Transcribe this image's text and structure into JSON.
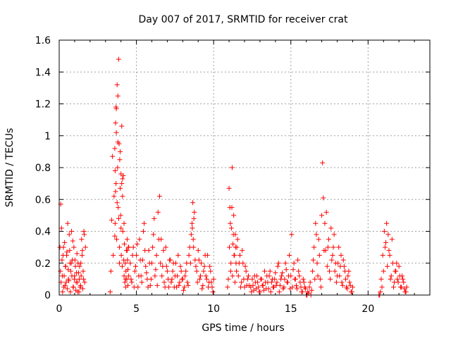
{
  "chart_data": {
    "type": "scatter",
    "title": "Day 007 of 2017, SRMTID for receiver crat",
    "xlabel": "GPS time / hours",
    "ylabel": "SRMTID / TECUs",
    "xlim": [
      0,
      24
    ],
    "ylim": [
      0,
      1.6
    ],
    "xticks": [
      0,
      5,
      10,
      15,
      20
    ],
    "yticks": [
      0,
      0.2,
      0.4,
      0.6,
      0.8,
      1,
      1.2,
      1.4,
      1.6
    ],
    "xtick_labels": [
      "0",
      "5",
      "10",
      "15",
      "20"
    ],
    "ytick_labels": [
      "0",
      "0.2",
      "0.4",
      "0.6",
      "0.8",
      "1",
      "1.2",
      "1.4",
      "1.6"
    ],
    "grid": true,
    "marker": "+",
    "color": "#ff0000",
    "series": [
      {
        "name": "SRMTID",
        "x": [
          0.05,
          0.1,
          0.15,
          0.2,
          0.25,
          0.3,
          0.35,
          0.4,
          0.45,
          0.5,
          0.55,
          0.6,
          0.65,
          0.7,
          0.75,
          0.8,
          0.85,
          0.9,
          0.95,
          1.0,
          1.05,
          1.1,
          1.15,
          1.2,
          1.25,
          1.3,
          1.35,
          1.4,
          1.45,
          1.5,
          1.55,
          1.6,
          1.65,
          1.7,
          0.08,
          0.12,
          0.18,
          0.22,
          0.28,
          0.32,
          0.38,
          0.42,
          0.48,
          0.52,
          0.58,
          0.62,
          0.68,
          0.72,
          0.78,
          0.82,
          0.88,
          0.92,
          0.98,
          1.02,
          1.08,
          1.12,
          1.18,
          1.22,
          1.28,
          1.32,
          1.38,
          1.42,
          1.48,
          1.52,
          1.58,
          1.62,
          3.3,
          3.35,
          3.4,
          3.45,
          3.5,
          3.55,
          3.6,
          3.62,
          3.65,
          3.68,
          3.7,
          3.72,
          3.75,
          3.78,
          3.8,
          3.82,
          3.85,
          3.88,
          3.9,
          3.92,
          3.95,
          3.98,
          4.0,
          4.02,
          4.05,
          4.08,
          4.1,
          4.12,
          4.15,
          4.18,
          4.2,
          4.22,
          4.25,
          4.28,
          4.3,
          4.32,
          4.35,
          4.38,
          4.4,
          4.42,
          4.45,
          4.48,
          4.5,
          3.6,
          3.62,
          3.65,
          3.68,
          3.7,
          3.75,
          3.8,
          3.85,
          3.9,
          3.95,
          4.0,
          4.05,
          4.1,
          4.2,
          4.3,
          4.4,
          4.45,
          4.5,
          4.6,
          4.7,
          4.8,
          4.9,
          5.0,
          5.1,
          5.2,
          5.3,
          5.4,
          5.5,
          5.6,
          5.7,
          5.8,
          5.9,
          6.0,
          6.1,
          6.2,
          6.3,
          6.4,
          6.5,
          6.6,
          6.7,
          6.8,
          6.9,
          7.0,
          7.1,
          7.2,
          7.3,
          7.4,
          7.5,
          7.6,
          7.7,
          7.8,
          7.9,
          4.65,
          4.75,
          4.85,
          4.95,
          5.05,
          5.15,
          5.25,
          5.35,
          5.45,
          5.55,
          5.65,
          5.75,
          5.85,
          5.95,
          6.05,
          6.15,
          6.25,
          6.35,
          6.45,
          6.55,
          6.65,
          6.75,
          6.85,
          6.95,
          7.05,
          7.15,
          7.25,
          7.35,
          7.45,
          7.55,
          7.65,
          7.75,
          7.85,
          7.95,
          8.0,
          8.1,
          8.2,
          8.3,
          8.4,
          8.5,
          8.55,
          8.6,
          8.65,
          8.7,
          8.75,
          8.8,
          8.9,
          9.0,
          9.1,
          9.2,
          9.3,
          9.4,
          9.5,
          9.6,
          9.7,
          9.8,
          9.9,
          10.0,
          8.05,
          8.15,
          8.25,
          8.35,
          8.45,
          8.62,
          8.68,
          8.72,
          8.85,
          8.95,
          9.05,
          9.15,
          9.25,
          9.35,
          9.45,
          9.55,
          9.65,
          9.75,
          9.85,
          9.95,
          10.9,
          11.0,
          11.05,
          11.1,
          11.15,
          11.2,
          11.25,
          11.3,
          11.35,
          11.4,
          11.45,
          11.5,
          11.6,
          11.7,
          11.8,
          11.9,
          12.0,
          12.1,
          12.2,
          12.3,
          10.95,
          11.02,
          11.08,
          11.12,
          11.18,
          11.22,
          11.28,
          11.32,
          11.38,
          11.42,
          11.48,
          11.55,
          11.65,
          11.75,
          11.85,
          11.95,
          12.05,
          12.15,
          12.25,
          12.4,
          12.5,
          12.6,
          12.7,
          12.8,
          12.9,
          13.0,
          13.1,
          13.2,
          13.3,
          13.4,
          13.5,
          13.6,
          13.7,
          13.8,
          13.9,
          14.0,
          14.1,
          14.2,
          14.3,
          14.4,
          14.5,
          14.6,
          14.7,
          14.8,
          14.9,
          15.0,
          15.1,
          15.2,
          15.3,
          15.4,
          15.5,
          15.6,
          15.7,
          15.8,
          15.9,
          12.45,
          12.55,
          12.65,
          12.75,
          12.85,
          12.95,
          13.05,
          13.15,
          13.25,
          13.35,
          13.45,
          13.55,
          13.65,
          13.75,
          13.85,
          13.95,
          14.05,
          14.15,
          14.25,
          14.35,
          14.45,
          14.55,
          14.65,
          14.75,
          14.85,
          14.95,
          15.05,
          15.15,
          15.25,
          15.35,
          15.45,
          15.55,
          15.65,
          15.75,
          15.85,
          15.95,
          16.0,
          16.1,
          16.2,
          16.3,
          16.4,
          16.5,
          16.6,
          16.7,
          16.8,
          16.9,
          17.0,
          17.05,
          17.1,
          17.15,
          17.2,
          17.3,
          17.4,
          17.5,
          17.6,
          17.7,
          17.8,
          17.9,
          18.0,
          18.1,
          18.2,
          18.3,
          18.4,
          18.5,
          18.6,
          18.7,
          18.8,
          18.9,
          19.0,
          16.05,
          16.15,
          16.25,
          16.35,
          16.45,
          16.55,
          16.65,
          16.75,
          16.85,
          16.95,
          17.25,
          17.35,
          17.45,
          17.55,
          17.65,
          17.75,
          17.85,
          17.95,
          18.05,
          18.15,
          18.25,
          18.35,
          18.45,
          18.55,
          18.65,
          18.75,
          18.85,
          18.95,
          20.7,
          20.8,
          20.9,
          21.0,
          21.1,
          21.2,
          21.3,
          21.4,
          21.5,
          21.6,
          21.7,
          21.8,
          21.9,
          22.0,
          22.1,
          22.2,
          22.3,
          22.4,
          22.5,
          20.75,
          20.85,
          20.95,
          21.05,
          21.15,
          21.25,
          21.35,
          21.45,
          21.55,
          21.65,
          21.75,
          21.85,
          21.95,
          22.05,
          22.15,
          22.25,
          22.35,
          22.45
        ],
        "y": [
          0.3,
          0.57,
          0.42,
          0.12,
          0.25,
          0.05,
          0.33,
          0.18,
          0.08,
          0.27,
          0.45,
          0.1,
          0.38,
          0.2,
          0.15,
          0.4,
          0.22,
          0.05,
          0.3,
          0.12,
          0.18,
          0.08,
          0.26,
          0.02,
          0.14,
          0.1,
          0.05,
          0.2,
          0.35,
          0.28,
          0.15,
          0.4,
          0.08,
          0.3,
          0.15,
          0.08,
          0.22,
          0.02,
          0.3,
          0.12,
          0.06,
          0.18,
          0.25,
          0.04,
          0.16,
          0.09,
          0.28,
          0.02,
          0.2,
          0.12,
          0.34,
          0.05,
          0.1,
          0.22,
          0.03,
          0.14,
          0.08,
          0.2,
          0.02,
          0.18,
          0.06,
          0.12,
          0.25,
          0.04,
          0.1,
          0.38,
          0.02,
          0.15,
          0.47,
          0.87,
          0.25,
          0.62,
          0.92,
          0.45,
          1.08,
          0.7,
          1.17,
          0.35,
          1.32,
          0.8,
          1.25,
          0.55,
          1.48,
          0.95,
          0.3,
          0.85,
          0.67,
          0.5,
          0.76,
          0.25,
          0.7,
          0.18,
          0.73,
          0.4,
          0.75,
          0.22,
          0.12,
          0.32,
          0.08,
          0.2,
          0.05,
          0.15,
          0.28,
          0.1,
          0.35,
          0.22,
          0.06,
          0.3,
          0.12,
          0.37,
          0.78,
          0.65,
          1.18,
          1.02,
          0.58,
          0.96,
          0.48,
          0.2,
          0.9,
          0.42,
          1.06,
          0.62,
          0.45,
          0.1,
          0.28,
          0.16,
          0.3,
          0.2,
          0.08,
          0.3,
          0.15,
          0.25,
          0.05,
          0.35,
          0.12,
          0.22,
          0.45,
          0.18,
          0.1,
          0.28,
          0.06,
          0.2,
          0.38,
          0.12,
          0.25,
          0.52,
          0.62,
          0.35,
          0.18,
          0.08,
          0.3,
          0.15,
          0.05,
          0.22,
          0.1,
          0.2,
          0.12,
          0.05,
          0.25,
          0.08,
          0.15,
          0.1,
          0.25,
          0.05,
          0.18,
          0.32,
          0.12,
          0.22,
          0.08,
          0.4,
          0.28,
          0.14,
          0.05,
          0.2,
          0.1,
          0.3,
          0.48,
          0.16,
          0.06,
          0.35,
          0.2,
          0.12,
          0.28,
          0.05,
          0.18,
          0.1,
          0.22,
          0.08,
          0.15,
          0.05,
          0.2,
          0.12,
          0.06,
          0.18,
          0.1,
          0.1,
          0.05,
          0.15,
          0.08,
          0.25,
          0.2,
          0.38,
          0.45,
          0.58,
          0.3,
          0.52,
          0.22,
          0.15,
          0.28,
          0.1,
          0.2,
          0.06,
          0.18,
          0.12,
          0.25,
          0.08,
          0.15,
          0.05,
          0.1,
          0.03,
          0.12,
          0.2,
          0.06,
          0.3,
          0.42,
          0.35,
          0.48,
          0.18,
          0.08,
          0.22,
          0.12,
          0.04,
          0.15,
          0.25,
          0.1,
          0.05,
          0.18,
          0.08,
          0.02,
          0.05,
          0.67,
          0.55,
          0.15,
          0.42,
          0.8,
          0.32,
          0.5,
          0.25,
          0.38,
          0.2,
          0.3,
          0.12,
          0.25,
          0.08,
          0.2,
          0.05,
          0.15,
          0.1,
          0.06,
          0.1,
          0.3,
          0.45,
          0.2,
          0.55,
          0.12,
          0.38,
          0.25,
          0.08,
          0.3,
          0.15,
          0.35,
          0.2,
          0.05,
          0.28,
          0.1,
          0.18,
          0.06,
          0.12,
          0.05,
          0.1,
          0.03,
          0.08,
          0.12,
          0.05,
          0.02,
          0.1,
          0.06,
          0.15,
          0.04,
          0.08,
          0.12,
          0.02,
          0.1,
          0.05,
          0.14,
          0.08,
          0.2,
          0.06,
          0.12,
          0.04,
          0.1,
          0.16,
          0.08,
          0.25,
          0.12,
          0.05,
          0.2,
          0.1,
          0.04,
          0.15,
          0.08,
          0.02,
          0.1,
          0.05,
          0.02,
          0.06,
          0.12,
          0.04,
          0.08,
          0.02,
          0.1,
          0.06,
          0.03,
          0.08,
          0.12,
          0.04,
          0.15,
          0.08,
          0.05,
          0.1,
          0.06,
          0.18,
          0.02,
          0.1,
          0.14,
          0.05,
          0.2,
          0.08,
          0.12,
          0.04,
          0.38,
          0.16,
          0.1,
          0.06,
          0.22,
          0.12,
          0.05,
          0.02,
          0.08,
          0.04,
          0.0,
          0.02,
          0.05,
          0.0,
          0.15,
          0.3,
          0.45,
          0.2,
          0.35,
          0.1,
          0.5,
          0.83,
          0.61,
          0.28,
          0.45,
          0.52,
          0.3,
          0.15,
          0.42,
          0.25,
          0.38,
          0.2,
          0.12,
          0.3,
          0.18,
          0.08,
          0.22,
          0.15,
          0.05,
          0.12,
          0.08,
          0.02,
          0.05,
          0.0,
          0.01,
          0.08,
          0.03,
          0.22,
          0.1,
          0.38,
          0.12,
          0.25,
          0.05,
          0.28,
          0.18,
          0.35,
          0.1,
          0.22,
          0.3,
          0.15,
          0.08,
          0.2,
          0.12,
          0.25,
          0.06,
          0.18,
          0.1,
          0.04,
          0.15,
          0.06,
          0.02,
          0.0,
          0.02,
          0.05,
          0.15,
          0.3,
          0.45,
          0.38,
          0.25,
          0.12,
          0.2,
          0.08,
          0.15,
          0.1,
          0.18,
          0.05,
          0.12,
          0.08,
          0.02,
          0.05,
          0.0,
          0.1,
          0.25,
          0.4,
          0.33,
          0.18,
          0.28,
          0.1,
          0.35,
          0.05,
          0.15,
          0.2,
          0.08,
          0.12,
          0.05,
          0.1,
          0.04,
          0.02
        ]
      }
    ]
  }
}
